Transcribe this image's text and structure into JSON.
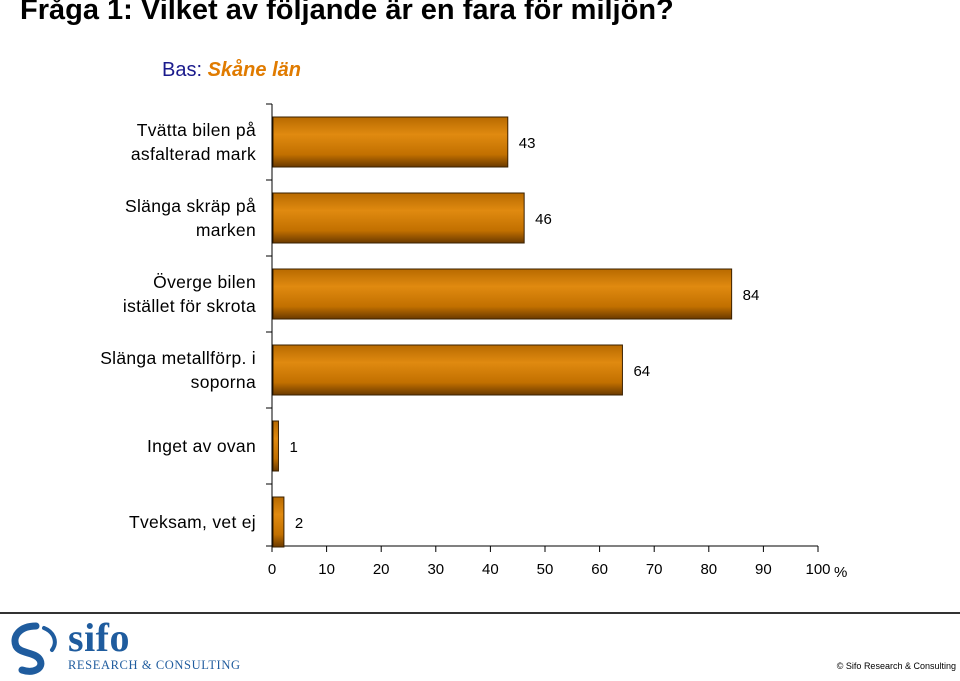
{
  "header": {
    "title": "Fråga 1: Vilket av följande är en fara för miljön?",
    "base_prefix": "Bas:",
    "base_region": "Skåne län"
  },
  "chart_data": {
    "type": "bar",
    "orientation": "horizontal",
    "categories": [
      "Tvätta bilen på\nasfalterad mark",
      "Slänga skräp på\nmarken",
      "Överge bilen\nistället för skrota",
      "Slänga metallförp. i\nsoporna",
      "Inget av ovan",
      "Tveksam, vet ej"
    ],
    "values": [
      43,
      46,
      84,
      64,
      1,
      2
    ],
    "data_labels": [
      "43",
      "46",
      "84",
      "64",
      "1",
      "2"
    ],
    "xlim": [
      0,
      100
    ],
    "xticks": [
      "0",
      "10",
      "20",
      "30",
      "40",
      "50",
      "60",
      "70",
      "80",
      "90",
      "100"
    ],
    "xunit": "%",
    "grid": false,
    "bar_color": "#e08a10"
  },
  "footer": {
    "logo_word": "sifo",
    "logo_sub": "RESEARCH & CONSULTING",
    "copyright": "© Sifo Research & Consulting"
  }
}
